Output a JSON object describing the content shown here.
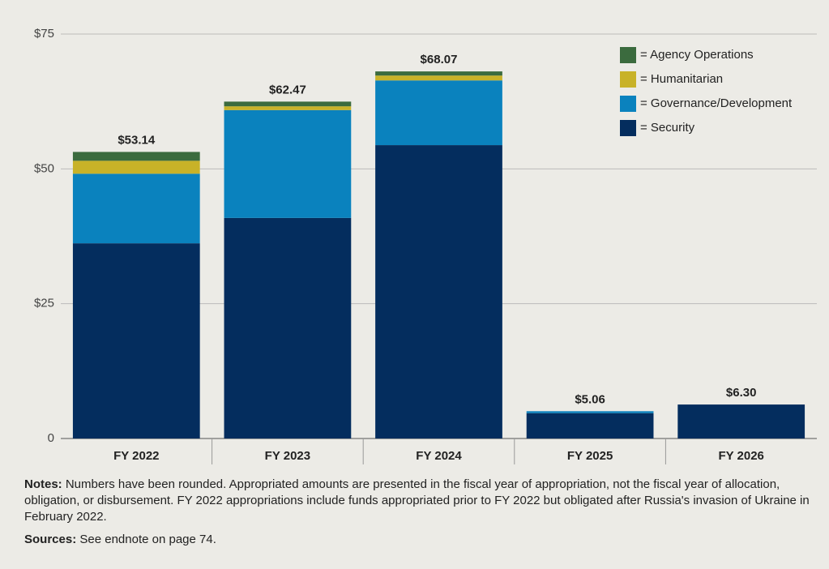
{
  "chart_data": {
    "type": "stacked_bar",
    "categories": [
      "FY 2022",
      "FY 2023",
      "FY 2024",
      "FY 2025",
      "FY 2026"
    ],
    "series": [
      {
        "name": "= Security",
        "color": "#042d5e",
        "values": [
          36.2,
          40.9,
          54.4,
          4.7,
          6.3
        ]
      },
      {
        "name": "= Governance/Development",
        "color": "#0a82be",
        "values": [
          12.9,
          20.0,
          12.0,
          0.36,
          0
        ]
      },
      {
        "name": "= Humanitarian",
        "color": "#c8b228",
        "values": [
          2.4,
          0.7,
          0.9,
          0,
          0
        ]
      },
      {
        "name": "= Agency Operations",
        "color": "#3b6b3e",
        "values": [
          1.64,
          0.87,
          0.77,
          0,
          0
        ]
      }
    ],
    "totals": {
      "values": [
        53.14,
        62.47,
        68.07,
        5.06,
        6.3
      ],
      "value_labels": [
        "$53.14",
        "$62.47",
        "$68.07",
        "$5.06",
        "$6.30"
      ]
    },
    "ylim": [
      0,
      75
    ],
    "yticks": [
      0,
      {
        "value": 25,
        "label": "$25"
      },
      {
        "value": 50,
        "label": "$50"
      },
      {
        "value": 75,
        "label": "$75"
      }
    ],
    "grid": true,
    "legend": "top-right",
    "notes": {
      "label": "Notes:",
      "text": "Numbers have been rounded. Appropriated amounts are presented in the fiscal year of appropriation, not the fiscal year of allocation, obligation, or disbursement. FY 2022 appropriations include funds appropriated prior to FY 2022 but obligated after Russia's invasion of Ukraine in February 2022."
    },
    "sources": {
      "label": "Sources:",
      "text": "See endnote on page 74."
    }
  }
}
